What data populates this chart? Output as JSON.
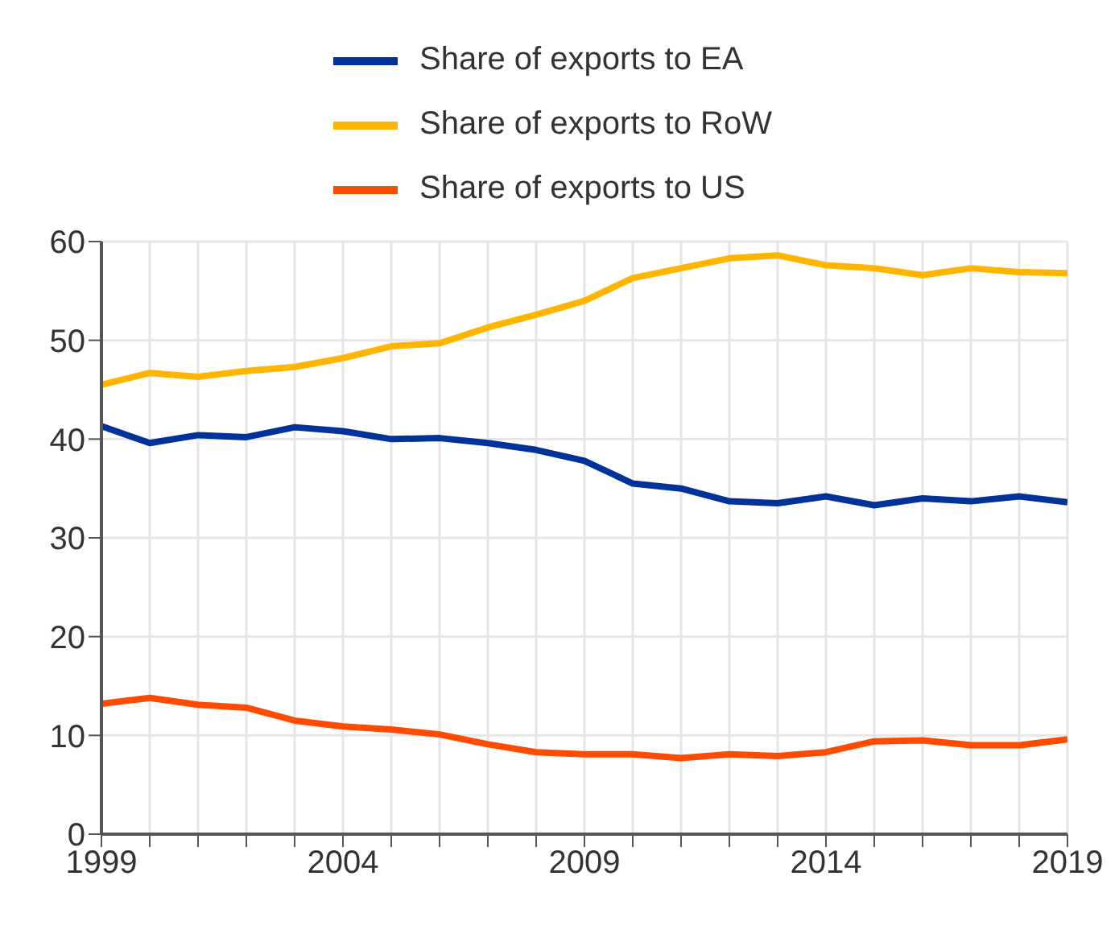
{
  "chart_data": {
    "type": "line",
    "x": [
      1999,
      2000,
      2001,
      2002,
      2003,
      2004,
      2005,
      2006,
      2007,
      2008,
      2009,
      2010,
      2011,
      2012,
      2013,
      2014,
      2015,
      2016,
      2017,
      2018,
      2019
    ],
    "series": [
      {
        "name": "Share of exports to EA",
        "color": "#003299",
        "values": [
          41.3,
          39.6,
          40.4,
          40.2,
          41.2,
          40.8,
          40.0,
          40.1,
          39.6,
          38.9,
          37.8,
          35.5,
          35.0,
          33.7,
          33.5,
          34.2,
          33.3,
          34.0,
          33.7,
          34.2,
          33.6
        ]
      },
      {
        "name": "Share of exports to RoW",
        "color": "#ffb400",
        "values": [
          45.5,
          46.7,
          46.3,
          46.9,
          47.3,
          48.2,
          49.4,
          49.7,
          51.3,
          52.6,
          54.0,
          56.3,
          57.3,
          58.3,
          58.6,
          57.6,
          57.3,
          56.6,
          57.3,
          56.9,
          56.8
        ]
      },
      {
        "name": "Share of exports to US",
        "color": "#ff4b00",
        "values": [
          13.2,
          13.8,
          13.1,
          12.8,
          11.5,
          10.9,
          10.6,
          10.1,
          9.1,
          8.3,
          8.1,
          8.1,
          7.7,
          8.1,
          7.9,
          8.3,
          9.4,
          9.5,
          9.0,
          9.0,
          9.6
        ]
      }
    ],
    "xlim": [
      1999,
      2019
    ],
    "xticks": [
      1999,
      {
        "value": 2000,
        "label": null
      },
      {
        "value": 2001,
        "label": null
      },
      {
        "value": 2002,
        "label": null
      },
      {
        "value": 2003,
        "label": null
      },
      2004,
      {
        "value": 2005,
        "label": null
      },
      {
        "value": 2006,
        "label": null
      },
      {
        "value": 2007,
        "label": null
      },
      {
        "value": 2008,
        "label": null
      },
      2009,
      {
        "value": 2010,
        "label": null
      },
      {
        "value": 2011,
        "label": null
      },
      {
        "value": 2012,
        "label": null
      },
      {
        "value": 2013,
        "label": null
      },
      2014,
      {
        "value": 2015,
        "label": null
      },
      {
        "value": 2016,
        "label": null
      },
      {
        "value": 2017,
        "label": null
      },
      {
        "value": 2018,
        "label": null
      },
      2019
    ],
    "ylim": [
      0,
      60
    ],
    "yticks": [
      0,
      10,
      20,
      30,
      40,
      50,
      60
    ],
    "grid": true,
    "legend": "top",
    "marker": "none",
    "line_style": "solid"
  }
}
